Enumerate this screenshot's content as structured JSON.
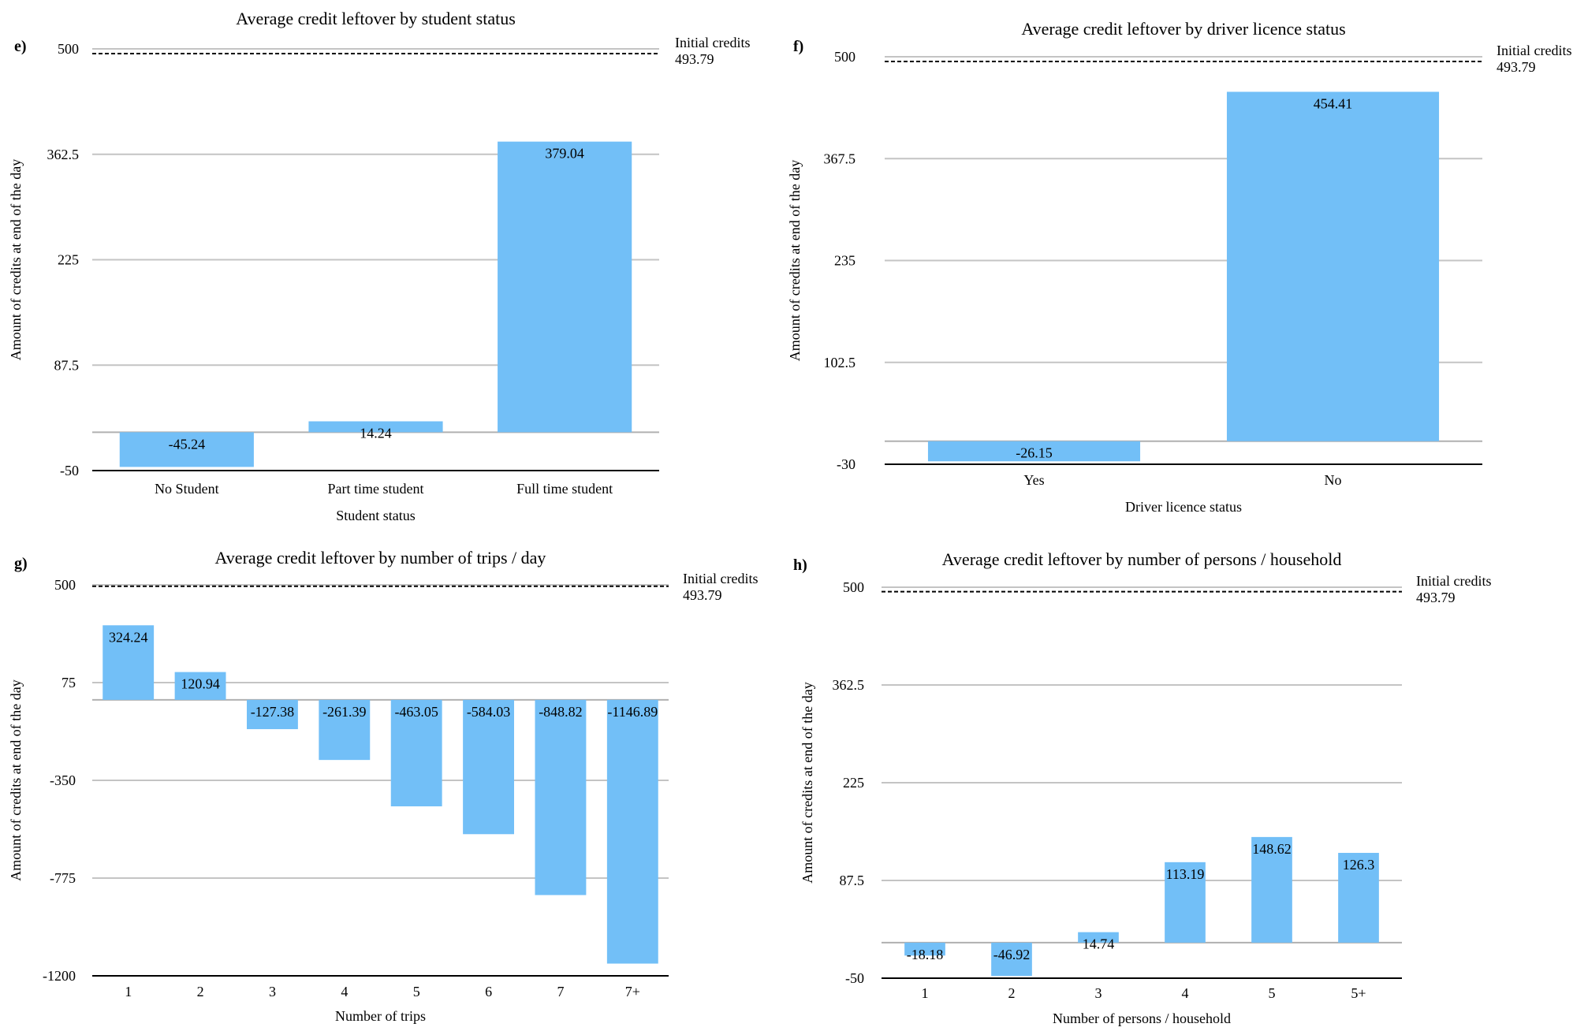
{
  "chart_data": [
    {
      "panel": "e)",
      "type": "bar",
      "title": "Average credit leftover by student status",
      "xlabel": "Student status",
      "ylabel": "Amount of credits at end of the day",
      "categories": [
        "No Student",
        "Part time student",
        "Full time student"
      ],
      "values": [
        -45.24,
        14.24,
        379.04
      ],
      "value_labels": [
        "-45.24",
        "14.24",
        "379.04"
      ],
      "ylim": [
        -50,
        500
      ],
      "yticks": [
        -50,
        87.5,
        225,
        362.5,
        500
      ],
      "ytick_labels": [
        "-50",
        "87.5",
        "225",
        "362.5",
        "500"
      ],
      "grid": true,
      "bar_color": "#72bff7",
      "reference_line": {
        "value": 493.79,
        "style": "dashed",
        "label": "Initial credits",
        "value_label": "493.79"
      }
    },
    {
      "panel": "f)",
      "type": "bar",
      "title": "Average credit leftover by driver licence status",
      "xlabel": "Driver licence status",
      "ylabel": "Amount of credits at end of the day",
      "categories": [
        "Yes",
        "No"
      ],
      "values": [
        -26.15,
        454.41
      ],
      "value_labels": [
        "-26.15",
        "454.41"
      ],
      "ylim": [
        -30,
        500
      ],
      "yticks": [
        -30,
        102.5,
        235,
        367.5,
        500
      ],
      "ytick_labels": [
        "-30",
        "102.5",
        "235",
        "367.5",
        "500"
      ],
      "grid": true,
      "bar_color": "#72bff7",
      "reference_line": {
        "value": 493.79,
        "style": "dashed",
        "label": "Initial credits",
        "value_label": "493.79"
      }
    },
    {
      "panel": "g)",
      "type": "bar",
      "title": "Average credit leftover by number of trips / day",
      "xlabel": "Number of trips",
      "ylabel": "Amount of credits at end of the day",
      "categories": [
        "1",
        "2",
        "3",
        "4",
        "5",
        "6",
        "7",
        "7+"
      ],
      "values": [
        324.24,
        120.94,
        -127.38,
        -261.39,
        -463.05,
        -584.03,
        -848.82,
        -1146.89
      ],
      "value_labels": [
        "324.24",
        "120.94",
        "-127.38",
        "-261.39",
        "-463.05",
        "-584.03",
        "-848.82",
        "-1146.89"
      ],
      "ylim": [
        -1200,
        500
      ],
      "yticks": [
        -1200,
        -775,
        -350,
        75,
        500
      ],
      "ytick_labels": [
        "-1200",
        "-775",
        "-350",
        "75",
        "500"
      ],
      "grid": true,
      "bar_color": "#72bff7",
      "reference_line": {
        "value": 493.79,
        "style": "dashed",
        "label": "Initial credits",
        "value_label": "493.79"
      }
    },
    {
      "panel": "h)",
      "type": "bar",
      "title": "Average credit leftover by number of persons / household",
      "xlabel": "Number of persons / household",
      "ylabel": "Amount of credits at end of the day",
      "categories": [
        "1",
        "2",
        "3",
        "4",
        "5",
        "5+"
      ],
      "values": [
        -18.18,
        -46.92,
        14.74,
        113.19,
        148.62,
        126.3
      ],
      "value_labels": [
        "-18.18",
        "-46.92",
        "14.74",
        "113.19",
        "148.62",
        "126.3"
      ],
      "ylim": [
        -50,
        500
      ],
      "yticks": [
        -50,
        87.5,
        225,
        362.5,
        500
      ],
      "ytick_labels": [
        "-50",
        "87.5",
        "225",
        "362.5",
        "500"
      ],
      "grid": true,
      "bar_color": "#72bff7",
      "reference_line": {
        "value": 493.79,
        "style": "dashed",
        "label": "Initial credits",
        "value_label": "493.79"
      }
    }
  ]
}
